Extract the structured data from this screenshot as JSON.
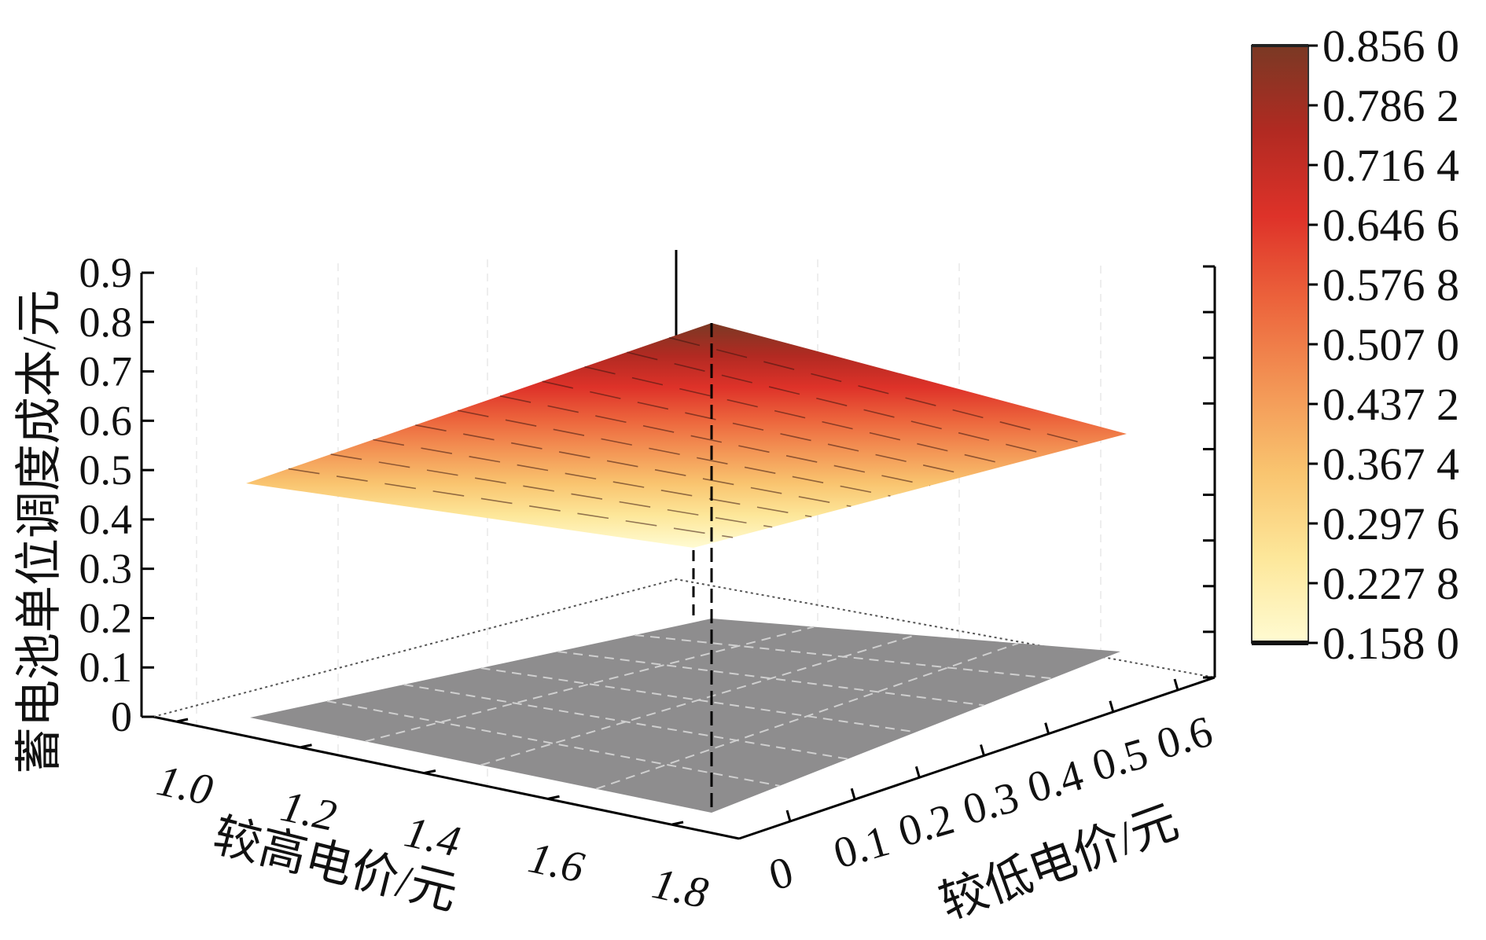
{
  "chart_data": {
    "type": "surface3d",
    "title": "",
    "xlabel": "较高电价/元",
    "ylabel": "较低电价/元",
    "zlabel": "蓄电池单位调度成本/元",
    "x_ticks": [
      "1.0",
      "1.2",
      "1.4",
      "1.6",
      "1.8"
    ],
    "y_ticks": [
      "0",
      "0.1",
      "0.2",
      "0.3",
      "0.4",
      "0.5",
      "0.6"
    ],
    "z_ticks": [
      "0",
      "0.1",
      "0.2",
      "0.3",
      "0.4",
      "0.5",
      "0.6",
      "0.7",
      "0.8",
      "0.9"
    ],
    "zlim": [
      0,
      0.9
    ],
    "colorbar": {
      "ticks": [
        "0.856 0",
        "0.786 2",
        "0.716 4",
        "0.646 6",
        "0.576 8",
        "0.507 0",
        "0.437 2",
        "0.367 4",
        "0.297 6",
        "0.227 8",
        "0.158 0"
      ],
      "range": [
        0.158,
        0.856
      ],
      "colors": [
        "#fffbd2",
        "#fde79a",
        "#f9c46f",
        "#f39555",
        "#ec643c",
        "#de3229",
        "#b12a22",
        "#7a3924"
      ]
    },
    "surface": {
      "corners": [
        {
          "x": 1.0,
          "y": 0.0,
          "z": 0.46
        },
        {
          "x": 1.8,
          "y": 0.0,
          "z": 0.81
        },
        {
          "x": 1.8,
          "y": 0.6,
          "z": 0.57
        },
        {
          "x": 1.0,
          "y": 0.6,
          "z": 0.34
        }
      ]
    },
    "floor_color": "#8e8d8e",
    "grid": true
  }
}
